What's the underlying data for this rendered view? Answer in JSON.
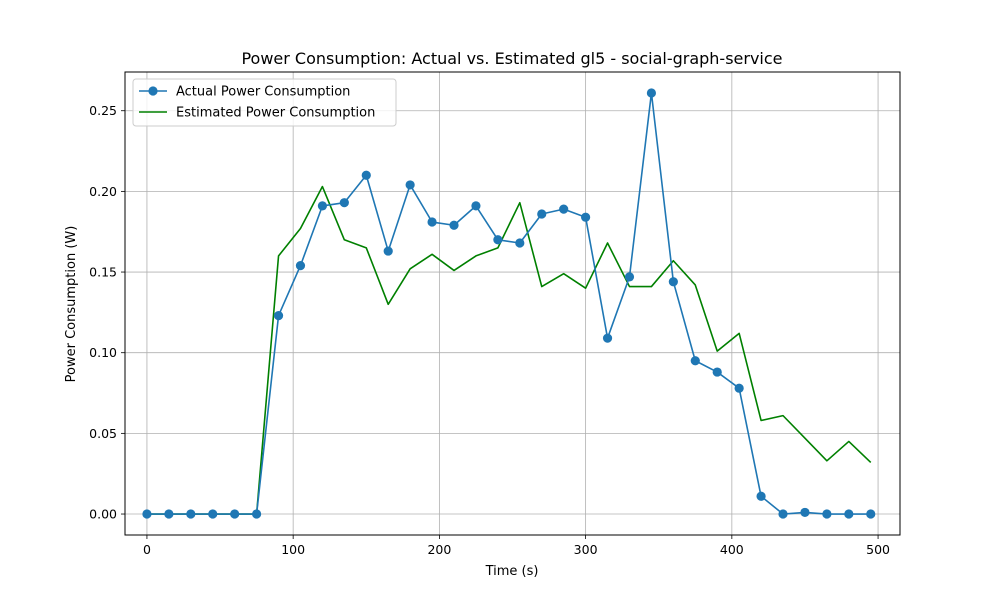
{
  "chart_data": {
    "type": "line",
    "title": "Power Consumption: Actual vs. Estimated gl5 - social-graph-service",
    "xlabel": "Time (s)",
    "ylabel": "Power Consumption (W)",
    "xlim": [
      -15,
      515
    ],
    "ylim": [
      -0.013,
      0.274
    ],
    "xticks": [
      0,
      100,
      200,
      300,
      400,
      500
    ],
    "xtick_labels": [
      "0",
      "100",
      "200",
      "300",
      "400",
      "500"
    ],
    "yticks": [
      0.0,
      0.05,
      0.1,
      0.15,
      0.2,
      0.25
    ],
    "ytick_labels": [
      "0.00",
      "0.05",
      "0.10",
      "0.15",
      "0.20",
      "0.25"
    ],
    "grid": true,
    "legend_position": "upper-left",
    "x": [
      0,
      15,
      30,
      45,
      60,
      75,
      90,
      105,
      120,
      135,
      150,
      165,
      180,
      195,
      210,
      225,
      240,
      255,
      270,
      285,
      300,
      315,
      330,
      345,
      360,
      375,
      390,
      405,
      420,
      435,
      450,
      465,
      480,
      495
    ],
    "series": [
      {
        "name": "Actual Power Consumption",
        "color": "#1f77b4",
        "marker": "circle",
        "values": [
          0.0,
          0.0,
          0.0,
          0.0,
          0.0,
          0.0,
          0.123,
          0.154,
          0.191,
          0.193,
          0.21,
          0.163,
          0.204,
          0.181,
          0.179,
          0.191,
          0.17,
          0.168,
          0.186,
          0.189,
          0.184,
          0.109,
          0.147,
          0.261,
          0.144,
          0.095,
          0.088,
          0.078,
          0.011,
          0.0,
          0.001,
          0.0,
          0.0,
          0.0
        ]
      },
      {
        "name": "Estimated Power Consumption",
        "color": "#008000",
        "marker": "none",
        "values": [
          0.0,
          0.0,
          0.0,
          0.0,
          0.0,
          0.0,
          0.16,
          0.177,
          0.203,
          0.17,
          0.165,
          0.13,
          0.152,
          0.161,
          0.151,
          0.16,
          0.165,
          0.193,
          0.141,
          0.149,
          0.14,
          0.168,
          0.141,
          0.141,
          0.157,
          0.142,
          0.101,
          0.112,
          0.058,
          0.061,
          0.047,
          0.033,
          0.045,
          0.032
        ]
      }
    ]
  }
}
